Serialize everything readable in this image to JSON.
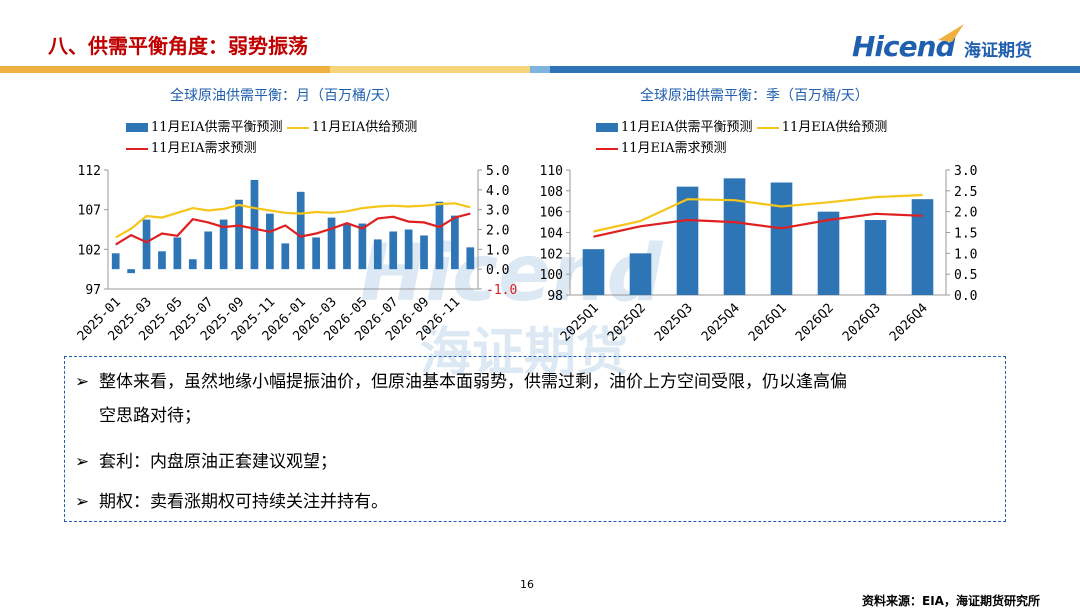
{
  "header": {
    "title": "八、供需平衡角度：弱势振荡",
    "logo_word": "Hicend",
    "logo_cn": "海证期货",
    "colors": {
      "title": "#c00000",
      "brand": "#1f5fae",
      "stripe_orange": "#f0b040",
      "stripe_blue": "#2e75b6"
    }
  },
  "chart_data": [
    {
      "type": "bar",
      "title": "全球原油供需平衡：月（百万桶/天）",
      "legend": [
        "11月EIA供需平衡预测",
        "11月EIA供给预测",
        "11月EIA需求预测"
      ],
      "categories": [
        "2025-01",
        "2025-02",
        "2025-03",
        "2025-04",
        "2025-05",
        "2025-06",
        "2025-07",
        "2025-08",
        "2025-09",
        "2025-10",
        "2025-11",
        "2025-12",
        "2026-01",
        "2026-02",
        "2026-03",
        "2026-04",
        "2026-05",
        "2026-06",
        "2026-07",
        "2026-08",
        "2026-09",
        "2026-10",
        "2026-11",
        "2026-12"
      ],
      "tick_labels": [
        "2025-01",
        "2025-03",
        "2025-05",
        "2025-07",
        "2025-09",
        "2025-11",
        "2026-01",
        "2026-03",
        "2026-05",
        "2026-07",
        "2026-09",
        "2026-11"
      ],
      "series": [
        {
          "name": "11月EIA供需平衡预测",
          "type": "bar",
          "axis": "right",
          "values": [
            0.8,
            -0.2,
            2.5,
            0.9,
            1.6,
            0.5,
            1.9,
            2.5,
            3.5,
            4.5,
            2.8,
            1.3,
            3.9,
            1.6,
            2.6,
            2.3,
            2.3,
            1.5,
            1.9,
            2.0,
            1.7,
            3.4,
            2.7,
            1.1
          ]
        },
        {
          "name": "11月EIA供给预测",
          "type": "line",
          "axis": "left",
          "values": [
            103.5,
            104.6,
            106.2,
            106.0,
            106.6,
            107.2,
            106.9,
            107.1,
            107.6,
            107.2,
            106.9,
            106.6,
            106.5,
            106.7,
            106.6,
            106.8,
            107.2,
            107.4,
            107.5,
            107.4,
            107.5,
            107.7,
            107.8,
            107.3
          ]
        },
        {
          "name": "11月EIA需求预测",
          "type": "line",
          "axis": "left",
          "values": [
            102.6,
            103.8,
            102.9,
            104.0,
            103.7,
            105.8,
            105.4,
            104.8,
            105.0,
            104.6,
            104.2,
            105.0,
            103.6,
            104.0,
            104.6,
            105.3,
            104.6,
            105.9,
            106.1,
            105.5,
            105.4,
            104.8,
            106.0,
            106.5
          ]
        }
      ],
      "left_axis": {
        "range": [
          97,
          112
        ],
        "ticks": [
          "97",
          "102",
          "107",
          "112"
        ]
      },
      "right_axis": {
        "range": [
          -1,
          5
        ],
        "ticks": [
          "-1.0",
          "0.0",
          "1.0",
          "2.0",
          "3.0",
          "4.0",
          "5.0"
        ]
      },
      "colors": {
        "bar": "#2e75b6",
        "supply": "#f5c518",
        "demand": "#e02020",
        "negative_tick": "#e02020"
      }
    },
    {
      "type": "bar",
      "title": "全球原油供需平衡：季（百万桶/天）",
      "legend": [
        "11月EIA供需平衡预测",
        "11月EIA供给预测",
        "11月EIA需求预测"
      ],
      "categories": [
        "2025Q1",
        "2025Q2",
        "2025Q3",
        "2025Q4",
        "2026Q1",
        "2026Q2",
        "2026Q3",
        "2026Q4"
      ],
      "series": [
        {
          "name": "11月EIA供需平衡预测",
          "type": "bar",
          "axis": "right",
          "values": [
            1.1,
            1.0,
            2.6,
            2.8,
            2.7,
            2.0,
            1.8,
            2.3
          ]
        },
        {
          "name": "11月EIA供给预测",
          "type": "line",
          "axis": "left",
          "values": [
            104.1,
            105.1,
            107.2,
            107.1,
            106.5,
            106.9,
            107.4,
            107.6
          ]
        },
        {
          "name": "11月EIA需求预测",
          "type": "line",
          "axis": "left",
          "values": [
            103.6,
            104.6,
            105.2,
            105.0,
            104.4,
            105.2,
            105.8,
            105.6
          ]
        }
      ],
      "left_axis": {
        "range": [
          98,
          110
        ],
        "ticks": [
          "98",
          "100",
          "102",
          "104",
          "106",
          "108",
          "110"
        ]
      },
      "right_axis": {
        "range": [
          0,
          3
        ],
        "ticks": [
          "0.0",
          "0.5",
          "1.0",
          "1.5",
          "2.0",
          "2.5",
          "3.0"
        ]
      },
      "colors": {
        "bar": "#2e75b6",
        "supply": "#f5c518",
        "demand": "#e02020"
      }
    }
  ],
  "notes": {
    "arrow": "➢",
    "items": [
      {
        "line1": "整体来看，虽然地缘小幅提振油价，但原油基本面弱势，供需过剩，油价上方空间受限，仍以逢高偏",
        "line2": "空思路对待；"
      },
      {
        "line1": "套利：内盘原油正套建议观望；"
      },
      {
        "line1": "期权：卖看涨期权可持续关注并持有。"
      }
    ]
  },
  "footer": {
    "page_number": "16",
    "source": "资料来源：EIA，海证期货研究所"
  }
}
